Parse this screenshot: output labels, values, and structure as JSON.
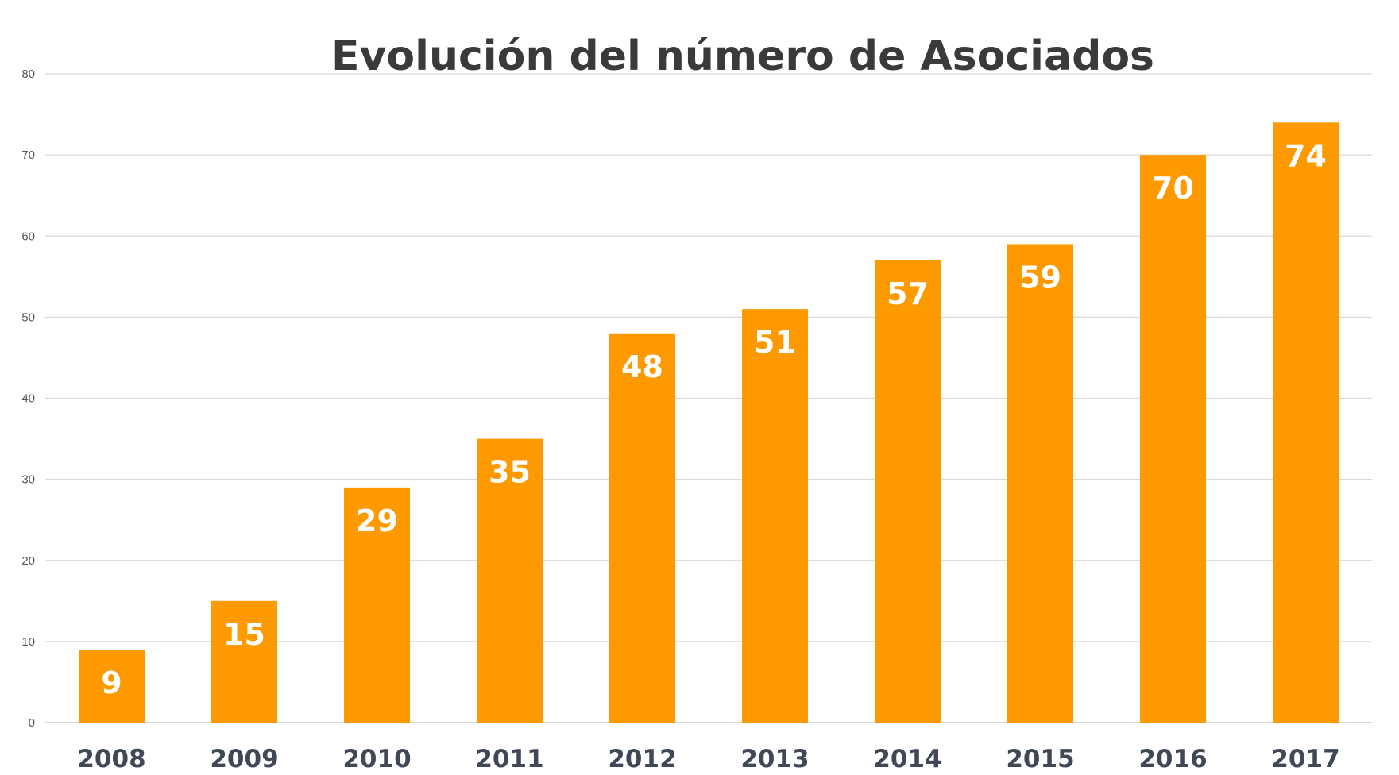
{
  "chart_data": {
    "type": "bar",
    "title": "Evolución del número de Asociados",
    "xlabel": "",
    "ylabel": "",
    "categories": [
      "2008",
      "2009",
      "2010",
      "2011",
      "2012",
      "2013",
      "2014",
      "2015",
      "2016",
      "2017"
    ],
    "values": [
      9,
      15,
      29,
      35,
      48,
      51,
      57,
      59,
      70,
      74
    ],
    "ylim": [
      0,
      80
    ],
    "yticks": [
      "0",
      "10",
      "20",
      "30",
      "40",
      "50",
      "60",
      "70",
      "80"
    ],
    "grid": true,
    "legend": "none",
    "bar_color": "#FF9900",
    "data_labels": "inside-top"
  }
}
